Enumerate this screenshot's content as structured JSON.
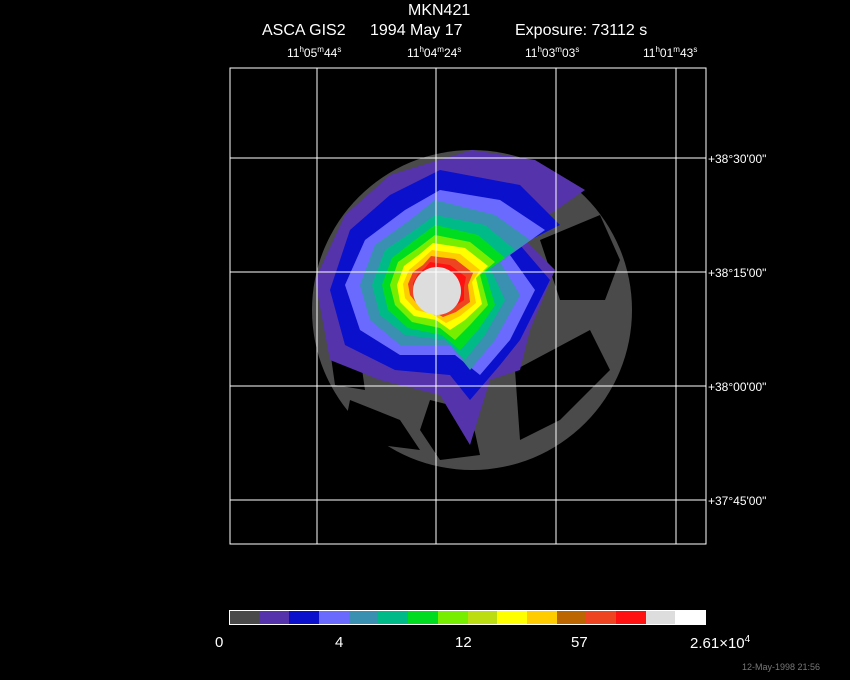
{
  "header": {
    "object": "MKN421",
    "instrument": "ASCA GIS2",
    "date": "1994 May 17",
    "exposure": "Exposure: 73112 s"
  },
  "ra_ticks": [
    {
      "h": "11",
      "m": "05",
      "s": "44"
    },
    {
      "h": "11",
      "m": "04",
      "s": "24"
    },
    {
      "h": "11",
      "m": "03",
      "s": "03"
    },
    {
      "h": "11",
      "m": "01",
      "s": "43"
    }
  ],
  "dec_ticks": [
    "+38°30'00\"",
    "+38°15'00\"",
    "+38°00'00\"",
    "+37°45'00\""
  ],
  "colorbar": {
    "colors": [
      "#4a4a4a",
      "#5533aa",
      "#0a10cc",
      "#6a6aff",
      "#3a90b0",
      "#00bb88",
      "#00dd20",
      "#77ee00",
      "#bbdd11",
      "#ffff00",
      "#ffcc00",
      "#bb6600",
      "#ee4422",
      "#ff1111",
      "#dddddd",
      "#ffffff"
    ],
    "labels": [
      "0",
      "4",
      "12",
      "57",
      "2.61×10"
    ],
    "max_exponent": "4"
  },
  "timestamp": "12-May-1998 21:56"
}
